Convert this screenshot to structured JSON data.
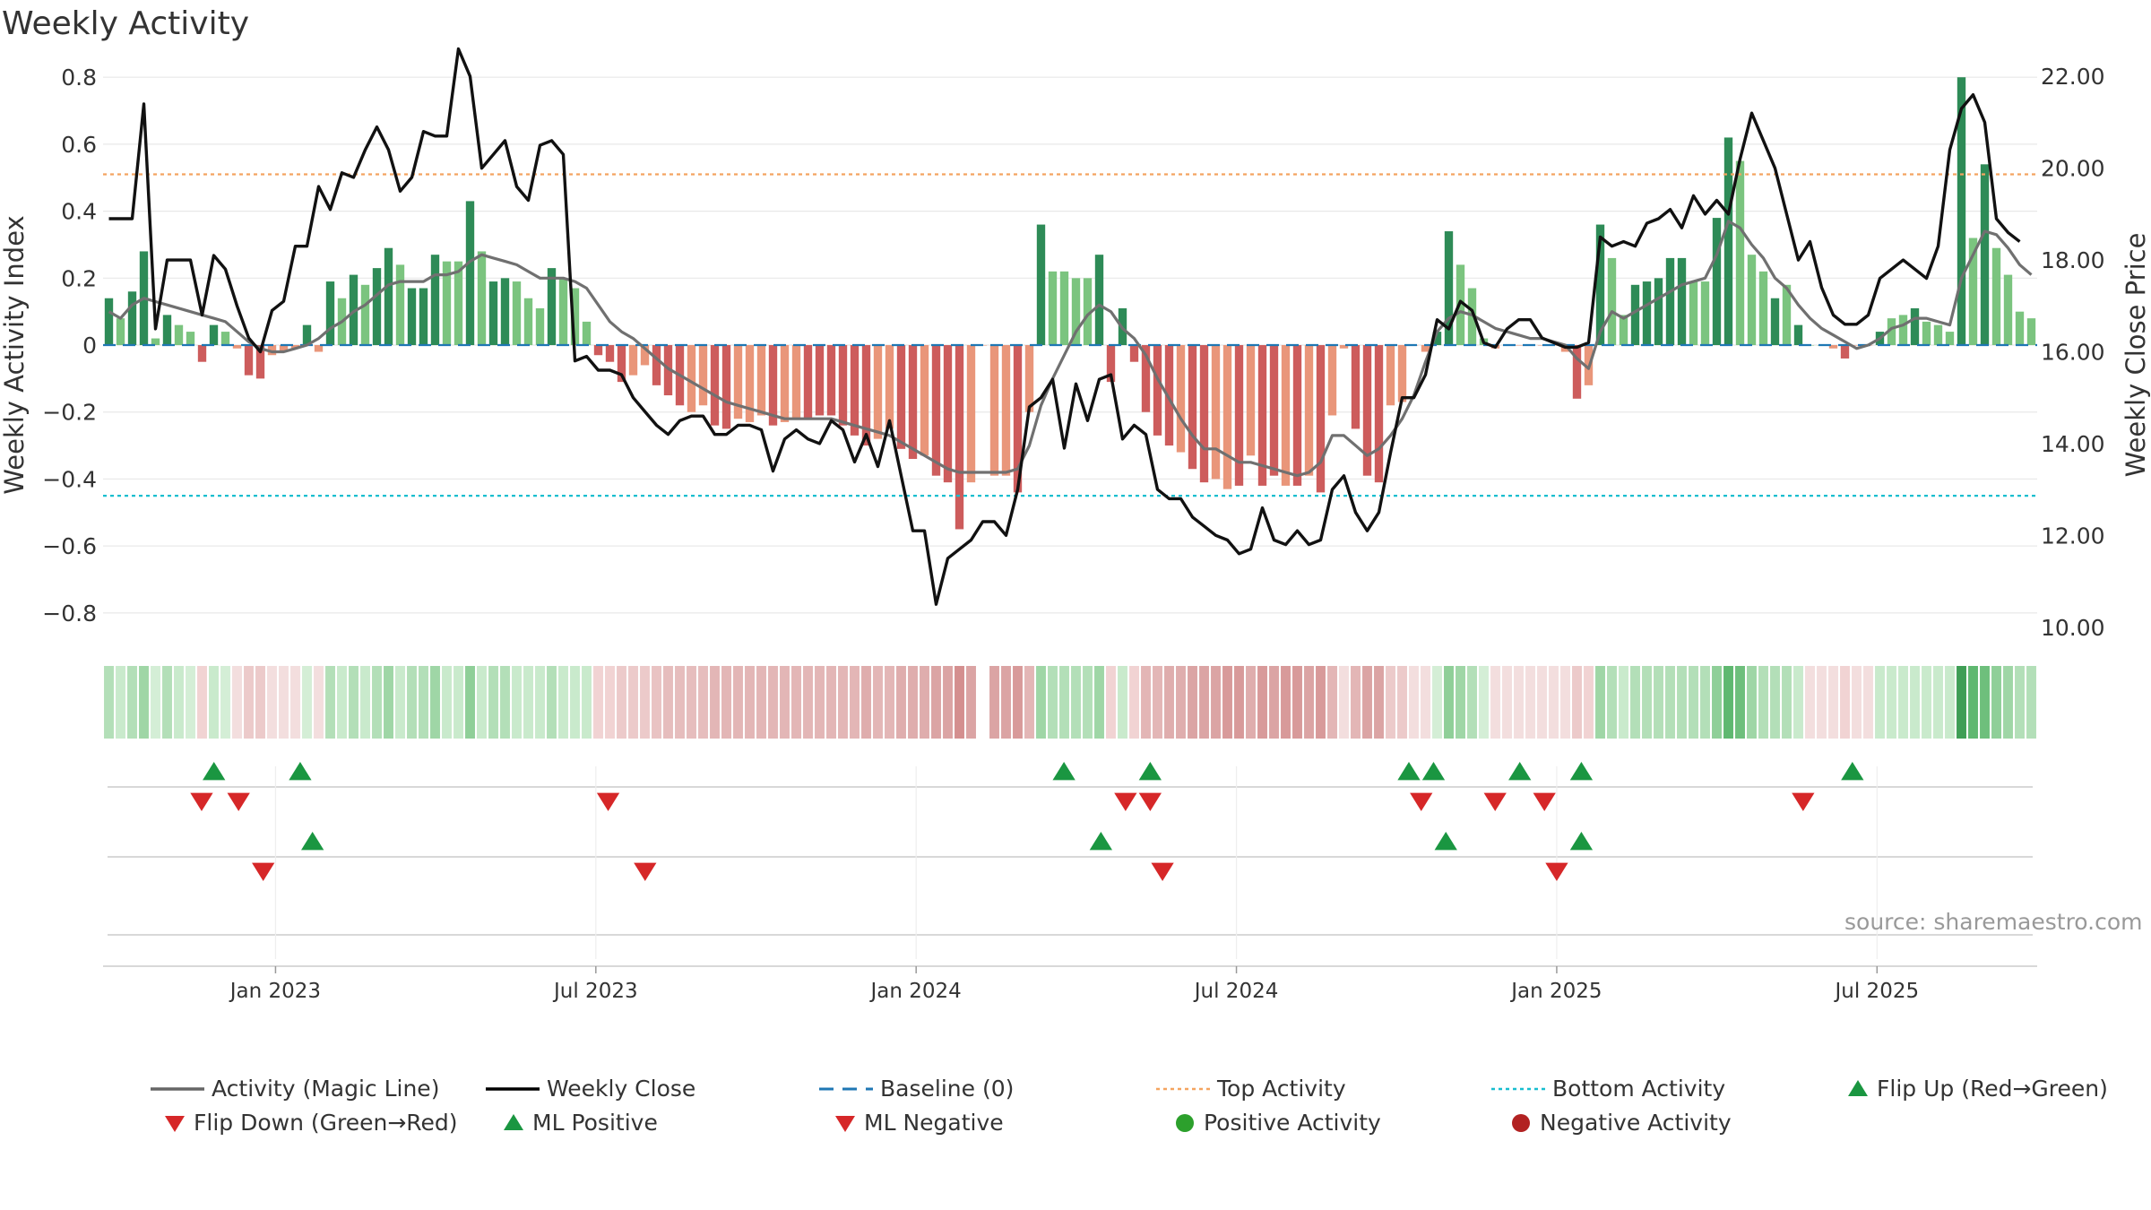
{
  "chart_data": {
    "type": "bar",
    "title": "Weekly Activity",
    "source": "source: sharemaestro.com",
    "ylabel_left": "Weekly Activity Index",
    "ylabel_right": "Weekly Close Price",
    "y_left_ticks": [
      "0.8",
      "0.6",
      "0.4",
      "0.2",
      "0",
      "−0.2",
      "−0.4",
      "−0.6",
      "−0.8"
    ],
    "y_left_tick_values": [
      0.8,
      0.6,
      0.4,
      0.2,
      0,
      -0.2,
      -0.4,
      -0.6,
      -0.8
    ],
    "y_right_ticks": [
      "22.00",
      "20.00",
      "18.00",
      "16.00",
      "14.00",
      "12.00",
      "10.00"
    ],
    "y_right_tick_values": [
      22,
      20,
      18,
      16,
      14,
      12,
      10
    ],
    "y_left_range": [
      -0.87,
      0.83
    ],
    "y_right_range": [
      9.8,
      22.2
    ],
    "x_range_weeks": [
      0,
      157
    ],
    "x_ticks": [
      {
        "label": "Jan 2023",
        "week": 14
      },
      {
        "label": "Jul 2023",
        "week": 40
      },
      {
        "label": "Jan 2024",
        "week": 66
      },
      {
        "label": "Jul 2024",
        "week": 92
      },
      {
        "label": "Jan 2025",
        "week": 118
      },
      {
        "label": "Jul 2025",
        "week": 144
      }
    ],
    "top_activity": 0.51,
    "bottom_activity": -0.45,
    "activity_values": [
      0.14,
      0.08,
      0.16,
      0.28,
      0.02,
      0.09,
      0.06,
      0.04,
      -0.05,
      0.06,
      0.04,
      -0.01,
      -0.09,
      -0.1,
      -0.03,
      -0.02,
      -0.01,
      0.06,
      -0.02,
      0.19,
      0.14,
      0.21,
      0.18,
      0.23,
      0.29,
      0.24,
      0.17,
      0.17,
      0.27,
      0.25,
      0.25,
      0.43,
      0.28,
      0.19,
      0.2,
      0.19,
      0.14,
      0.11,
      0.23,
      0.2,
      0.17,
      0.07,
      -0.03,
      -0.05,
      -0.11,
      -0.09,
      -0.06,
      -0.12,
      -0.15,
      -0.18,
      -0.2,
      -0.18,
      -0.24,
      -0.25,
      -0.22,
      -0.23,
      -0.21,
      -0.24,
      -0.23,
      -0.22,
      -0.22,
      -0.21,
      -0.21,
      -0.24,
      -0.27,
      -0.3,
      -0.28,
      -0.25,
      -0.31,
      -0.34,
      -0.33,
      -0.39,
      -0.41,
      -0.55,
      -0.41,
      0,
      -0.39,
      -0.39,
      -0.44,
      -0.2,
      0.36,
      0.22,
      0.22,
      0.2,
      0.2,
      0.27,
      -0.11,
      0.11,
      -0.05,
      -0.2,
      -0.27,
      -0.3,
      -0.32,
      -0.37,
      -0.41,
      -0.4,
      -0.43,
      -0.42,
      -0.33,
      -0.42,
      -0.39,
      -0.42,
      -0.42,
      -0.39,
      -0.44,
      -0.21,
      -0.01,
      -0.25,
      -0.39,
      -0.41,
      -0.18,
      -0.17,
      0,
      -0.02,
      0.04,
      0.34,
      0.24,
      0.17,
      0.02,
      -0.01,
      0.0,
      0.0,
      0.0,
      0.0,
      0.0,
      -0.02,
      -0.16,
      -0.12,
      0.36,
      0.26,
      0.09,
      0.18,
      0.19,
      0.2,
      0.26,
      0.26,
      0.19,
      0.19,
      0.38,
      0.62,
      0.55,
      0.27,
      0.22,
      0.14,
      0.18,
      0.06,
      0.0,
      0.0,
      -0.01,
      -0.04,
      0.0,
      0.0,
      0.04,
      0.08,
      0.09,
      0.11,
      0.07,
      0.06,
      0.04,
      0.8,
      0.32,
      0.54,
      0.29,
      0.21,
      0.1,
      0.08
    ],
    "bar_colors": [
      "#2e8b57",
      "#7bc47f",
      "#2e8b57",
      "#2e8b57",
      "#7bc47f",
      "#2e8b57",
      "#7bc47f",
      "#7bc47f",
      "#cd5c5c",
      "#2e8b57",
      "#7bc47f",
      "#e9967a",
      "#cd5c5c",
      "#cd5c5c",
      "#e9967a",
      "#e9967a",
      "#e9967a",
      "#2e8b57",
      "#e9967a",
      "#2e8b57",
      "#7bc47f",
      "#2e8b57",
      "#7bc47f",
      "#2e8b57",
      "#2e8b57",
      "#7bc47f",
      "#2e8b57",
      "#2e8b57",
      "#2e8b57",
      "#7bc47f",
      "#7bc47f",
      "#2e8b57",
      "#7bc47f",
      "#2e8b57",
      "#2e8b57",
      "#7bc47f",
      "#7bc47f",
      "#7bc47f",
      "#2e8b57",
      "#7bc47f",
      "#7bc47f",
      "#7bc47f",
      "#cd5c5c",
      "#cd5c5c",
      "#cd5c5c",
      "#e9967a",
      "#e9967a",
      "#cd5c5c",
      "#cd5c5c",
      "#cd5c5c",
      "#e9967a",
      "#e9967a",
      "#cd5c5c",
      "#cd5c5c",
      "#e9967a",
      "#e9967a",
      "#e9967a",
      "#cd5c5c",
      "#e9967a",
      "#e9967a",
      "#cd5c5c",
      "#cd5c5c",
      "#cd5c5c",
      "#cd5c5c",
      "#cd5c5c",
      "#cd5c5c",
      "#e9967a",
      "#e9967a",
      "#cd5c5c",
      "#cd5c5c",
      "#e9967a",
      "#cd5c5c",
      "#cd5c5c",
      "#cd5c5c",
      "#e9967a",
      "#e9967a",
      "#e9967a",
      "#e9967a",
      "#cd5c5c",
      "#e9967a",
      "#2e8b57",
      "#7bc47f",
      "#7bc47f",
      "#7bc47f",
      "#7bc47f",
      "#2e8b57",
      "#cd5c5c",
      "#2e8b57",
      "#cd5c5c",
      "#cd5c5c",
      "#cd5c5c",
      "#cd5c5c",
      "#e9967a",
      "#cd5c5c",
      "#cd5c5c",
      "#e9967a",
      "#e9967a",
      "#cd5c5c",
      "#e9967a",
      "#cd5c5c",
      "#cd5c5c",
      "#e9967a",
      "#cd5c5c",
      "#e9967a",
      "#cd5c5c",
      "#e9967a",
      "#e9967a",
      "#cd5c5c",
      "#cd5c5c",
      "#cd5c5c",
      "#e9967a",
      "#e9967a",
      "#e9967a",
      "#e9967a",
      "#2e8b57",
      "#2e8b57",
      "#7bc47f",
      "#7bc47f",
      "#7bc47f",
      "#e9967a",
      "#e9967a",
      "#e9967a",
      "#e9967a",
      "#e9967a",
      "#e9967a",
      "#e9967a",
      "#cd5c5c",
      "#e9967a",
      "#2e8b57",
      "#7bc47f",
      "#7bc47f",
      "#2e8b57",
      "#2e8b57",
      "#2e8b57",
      "#2e8b57",
      "#2e8b57",
      "#7bc47f",
      "#7bc47f",
      "#2e8b57",
      "#2e8b57",
      "#7bc47f",
      "#7bc47f",
      "#7bc47f",
      "#2e8b57",
      "#7bc47f",
      "#2e8b57",
      "#7bc47f",
      "#7bc47f",
      "#e9967a",
      "#cd5c5c",
      "#e9967a",
      "#e9967a",
      "#2e8b57",
      "#7bc47f",
      "#7bc47f",
      "#2e8b57",
      "#7bc47f",
      "#7bc47f",
      "#7bc47f",
      "#2e8b57",
      "#7bc47f",
      "#2e8b57",
      "#7bc47f",
      "#7bc47f",
      "#7bc47f",
      "#7bc47f"
    ],
    "magic_line": [
      0.1,
      0.08,
      0.12,
      0.14,
      0.13,
      0.12,
      0.11,
      0.1,
      0.09,
      0.08,
      0.07,
      0.04,
      0.01,
      -0.01,
      -0.02,
      -0.02,
      -0.01,
      0.0,
      0.02,
      0.05,
      0.07,
      0.1,
      0.12,
      0.15,
      0.18,
      0.19,
      0.19,
      0.19,
      0.21,
      0.21,
      0.22,
      0.25,
      0.27,
      0.26,
      0.25,
      0.24,
      0.22,
      0.2,
      0.2,
      0.2,
      0.19,
      0.17,
      0.12,
      0.07,
      0.04,
      0.02,
      -0.01,
      -0.04,
      -0.07,
      -0.09,
      -0.11,
      -0.13,
      -0.15,
      -0.17,
      -0.18,
      -0.19,
      -0.2,
      -0.21,
      -0.22,
      -0.22,
      -0.22,
      -0.22,
      -0.22,
      -0.23,
      -0.24,
      -0.25,
      -0.26,
      -0.27,
      -0.29,
      -0.31,
      -0.33,
      -0.35,
      -0.37,
      -0.38,
      -0.38,
      -0.38,
      -0.38,
      -0.38,
      -0.37,
      -0.3,
      -0.18,
      -0.1,
      -0.03,
      0.04,
      0.09,
      0.12,
      0.1,
      0.05,
      0.02,
      -0.03,
      -0.1,
      -0.16,
      -0.22,
      -0.27,
      -0.31,
      -0.31,
      -0.33,
      -0.35,
      -0.35,
      -0.36,
      -0.37,
      -0.38,
      -0.39,
      -0.38,
      -0.35,
      -0.27,
      -0.27,
      -0.3,
      -0.33,
      -0.31,
      -0.27,
      -0.22,
      -0.15,
      -0.05,
      0.04,
      0.08,
      0.1,
      0.09,
      0.07,
      0.05,
      0.04,
      0.03,
      0.02,
      0.02,
      0.01,
      0.0,
      -0.04,
      -0.07,
      0.04,
      0.1,
      0.08,
      0.1,
      0.12,
      0.14,
      0.16,
      0.18,
      0.19,
      0.2,
      0.27,
      0.37,
      0.35,
      0.3,
      0.26,
      0.2,
      0.17,
      0.12,
      0.08,
      0.05,
      0.03,
      0.01,
      -0.01,
      0.0,
      0.02,
      0.05,
      0.06,
      0.08,
      0.08,
      0.07,
      0.06,
      0.2,
      0.27,
      0.34,
      0.33,
      0.29,
      0.24,
      0.21
    ],
    "weekly_close": [
      18.9,
      18.9,
      18.9,
      21.4,
      16.5,
      18,
      18,
      18,
      16.8,
      18.1,
      17.8,
      17,
      16.3,
      16,
      16.9,
      17.1,
      18.3,
      18.3,
      19.6,
      19.1,
      19.9,
      19.8,
      20.4,
      20.9,
      20.4,
      19.5,
      19.8,
      20.8,
      20.7,
      20.7,
      22.6,
      22,
      20,
      20.3,
      20.6,
      19.6,
      19.3,
      20.5,
      20.6,
      20.3,
      15.8,
      15.9,
      15.6,
      15.6,
      15.5,
      15,
      14.7,
      14.4,
      14.2,
      14.5,
      14.6,
      14.6,
      14.2,
      14.2,
      14.4,
      14.4,
      14.3,
      13.4,
      14.1,
      14.3,
      14.1,
      14,
      14.5,
      14.3,
      13.6,
      14.2,
      13.5,
      14.5,
      13.3,
      12.1,
      12.1,
      10.5,
      11.5,
      11.7,
      11.9,
      12.3,
      12.3,
      12.0,
      13.0,
      14.8,
      15,
      15.4,
      13.9,
      15.3,
      14.5,
      15.4,
      15.5,
      14.1,
      14.4,
      14.2,
      13,
      12.8,
      12.8,
      12.4,
      12.2,
      12,
      11.9,
      11.6,
      11.7,
      12.6,
      11.9,
      11.8,
      12.1,
      11.8,
      11.9,
      13.0,
      13.3,
      12.5,
      12.1,
      12.5,
      13.8,
      15.0,
      15.0,
      15.5,
      16.7,
      16.5,
      17.1,
      16.9,
      16.2,
      16.1,
      16.5,
      16.7,
      16.7,
      16.3,
      16.2,
      16.1,
      16.1,
      16.2,
      18.5,
      18.3,
      18.4,
      18.3,
      18.8,
      18.9,
      19.1,
      18.7,
      19.4,
      19.0,
      19.3,
      19.0,
      20.2,
      21.2,
      20.6,
      20.0,
      19.0,
      18.0,
      18.4,
      17.4,
      16.8,
      16.6,
      16.6,
      16.8,
      17.6,
      17.8,
      18.0,
      17.8,
      17.6,
      18.3,
      20.4,
      21.3,
      21.6,
      21.0,
      18.9,
      18.6,
      18.4
    ],
    "heat_strip_colors": [
      "#b3dfb8",
      "#c9eacc",
      "#b3dfb8",
      "#9fd6a6",
      "#d4eed6",
      "#b3dfb8",
      "#c9eacc",
      "#d4eed6",
      "#f1d3d3",
      "#c9eacc",
      "#d4eed6",
      "#f3dede",
      "#eccaca",
      "#eccaca",
      "#f3dede",
      "#f3dede",
      "#f3dede",
      "#d4eed6",
      "#f3dede",
      "#b3dfb8",
      "#c9eacc",
      "#b3dfb8",
      "#c9eacc",
      "#b3dfb8",
      "#9fd6a6",
      "#c9eacc",
      "#b3dfb8",
      "#b3dfb8",
      "#9fd6a6",
      "#c9eacc",
      "#c9eacc",
      "#8fcf98",
      "#c9eacc",
      "#b3dfb8",
      "#b3dfb8",
      "#c9eacc",
      "#c9eacc",
      "#c9eacc",
      "#b3dfb8",
      "#c9eacc",
      "#c9eacc",
      "#c9eacc",
      "#f1d3d3",
      "#f1d3d3",
      "#eccaca",
      "#eccaca",
      "#eccaca",
      "#e9c3c3",
      "#e6bdbd",
      "#e6bdbd",
      "#e6bdbd",
      "#e6bdbd",
      "#e3b6b6",
      "#e3b6b6",
      "#e3b6b6",
      "#e3b6b6",
      "#e3b6b6",
      "#e3b6b6",
      "#e3b6b6",
      "#e3b6b6",
      "#e3b6b6",
      "#e3b6b6",
      "#e3b6b6",
      "#e3b6b6",
      "#e3b6b6",
      "#dfadad",
      "#e3b6b6",
      "#e3b6b6",
      "#dfadad",
      "#dfadad",
      "#dfadad",
      "#dba4a4",
      "#dba4a4",
      "#d48f8f",
      "#dba4a4",
      "#ffffff",
      "#dba4a4",
      "#dba4a4",
      "#d89a9a",
      "#e3b6b6",
      "#9fd6a6",
      "#b3dfb8",
      "#b3dfb8",
      "#b3dfb8",
      "#b3dfb8",
      "#9fd6a6",
      "#f1d3d3",
      "#c9eacc",
      "#f1d3d3",
      "#e3b6b6",
      "#e3b6b6",
      "#dfadad",
      "#dfadad",
      "#dba4a4",
      "#dba4a4",
      "#dba4a4",
      "#d89a9a",
      "#d89a9a",
      "#dfadad",
      "#d89a9a",
      "#dba4a4",
      "#d89a9a",
      "#d89a9a",
      "#dba4a4",
      "#d89a9a",
      "#e3b6b6",
      "#f3dede",
      "#e3b6b6",
      "#dba4a4",
      "#dba4a4",
      "#eccaca",
      "#eccaca",
      "#f3dede",
      "#f3dede",
      "#d4eed6",
      "#8fcf98",
      "#9fd6a6",
      "#b3dfb8",
      "#d4eed6",
      "#f3dede",
      "#f3dede",
      "#f3dede",
      "#f3dede",
      "#f3dede",
      "#f3dede",
      "#f3dede",
      "#eccaca",
      "#f1d3d3",
      "#9fd6a6",
      "#b3dfb8",
      "#c9eacc",
      "#b3dfb8",
      "#b3dfb8",
      "#b3dfb8",
      "#b3dfb8",
      "#b3dfb8",
      "#b3dfb8",
      "#b3dfb8",
      "#8fcf98",
      "#5fb870",
      "#6ebf7c",
      "#9fd6a6",
      "#b3dfb8",
      "#b3dfb8",
      "#b3dfb8",
      "#c9eacc",
      "#f3dede",
      "#f3dede",
      "#f3dede",
      "#f1d3d3",
      "#f3dede",
      "#f3dede",
      "#c9eacc",
      "#c9eacc",
      "#c9eacc",
      "#c9eacc",
      "#c9eacc",
      "#c9eacc",
      "#c9eacc",
      "#3f9e55",
      "#5fb870",
      "#6ebf7c",
      "#8fcf98",
      "#9fd6a6",
      "#b3dfb8",
      "#b3dfb8"
    ],
    "flip_up_weeks": [
      9,
      16,
      78,
      85,
      106,
      108,
      115,
      120,
      142
    ],
    "flip_down_weeks": [
      8,
      11,
      41,
      83,
      85,
      107,
      113,
      117,
      138
    ],
    "ml_positive_weeks": [
      17,
      81,
      109,
      120
    ],
    "ml_negative_weeks": [
      13,
      44,
      86,
      118
    ],
    "legend": [
      {
        "label": "Activity (Magic Line)",
        "symbol": "line",
        "color": "#666666"
      },
      {
        "label": "Weekly Close",
        "symbol": "line",
        "color": "#000000"
      },
      {
        "label": "Baseline (0)",
        "symbol": "dash",
        "color": "#1f77b4"
      },
      {
        "label": "Top Activity",
        "symbol": "dot-line",
        "color": "#f4a460"
      },
      {
        "label": "Bottom Activity",
        "symbol": "dot-line",
        "color": "#17becf"
      },
      {
        "label": "Flip Up (Red→Green)",
        "symbol": "triangle-up",
        "color": "#1a9641"
      },
      {
        "label": "Flip Down (Green→Red)",
        "symbol": "triangle-down",
        "color": "#d62728"
      },
      {
        "label": "ML Positive",
        "symbol": "triangle-up",
        "color": "#1a9641"
      },
      {
        "label": "ML Negative",
        "symbol": "triangle-down",
        "color": "#d62728"
      },
      {
        "label": "Positive Activity",
        "symbol": "circle",
        "color": "#2ca02c"
      },
      {
        "label": "Negative Activity",
        "symbol": "circle",
        "color": "#b22222"
      }
    ],
    "colors": {
      "grid": "#e8e8e8",
      "baseline": "#1f77b4",
      "top_activity": "#f4a460",
      "bottom_activity": "#17becf",
      "magic_line": "#707070",
      "close_line": "#111111",
      "flip_up": "#1a9641",
      "flip_down": "#d62728"
    }
  }
}
